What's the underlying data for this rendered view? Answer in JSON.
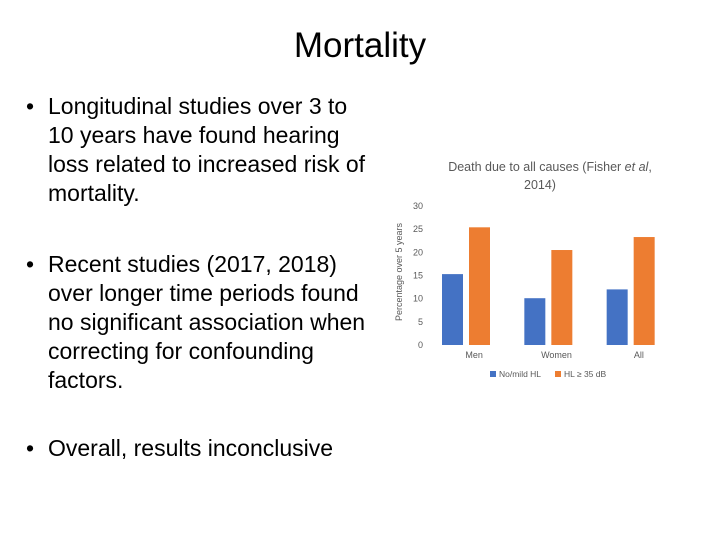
{
  "slide": {
    "title": "Mortality",
    "bullets": [
      "Longitudinal studies over 3 to 10 years have found hearing loss related to increased risk of mortality.",
      "Recent studies (2017, 2018) over longer time periods found no significant association when correcting for confounding factors.",
      "Overall, results inconclusive"
    ],
    "bullet_symbol": "•"
  },
  "chart_data": {
    "type": "bar",
    "title_main": "Death due to all causes (Fisher ",
    "title_italic": "et al",
    "title_end": ",",
    "title_line2": "2014)",
    "ylabel": "Percentage over 5 years",
    "xlabel": "",
    "categories": [
      "Men",
      "Women",
      "All"
    ],
    "ylim": [
      0,
      30
    ],
    "yticks": [
      0,
      5,
      10,
      15,
      20,
      25,
      30
    ],
    "series": [
      {
        "name": "No/mild HL",
        "color": "#4472C4",
        "values": [
          15.3,
          10.1,
          12.0
        ]
      },
      {
        "name": "HL ≥ 35 dB",
        "color": "#ED7D31",
        "values": [
          25.4,
          20.5,
          23.3
        ]
      }
    ],
    "grid": false,
    "legend_position": "bottom"
  }
}
